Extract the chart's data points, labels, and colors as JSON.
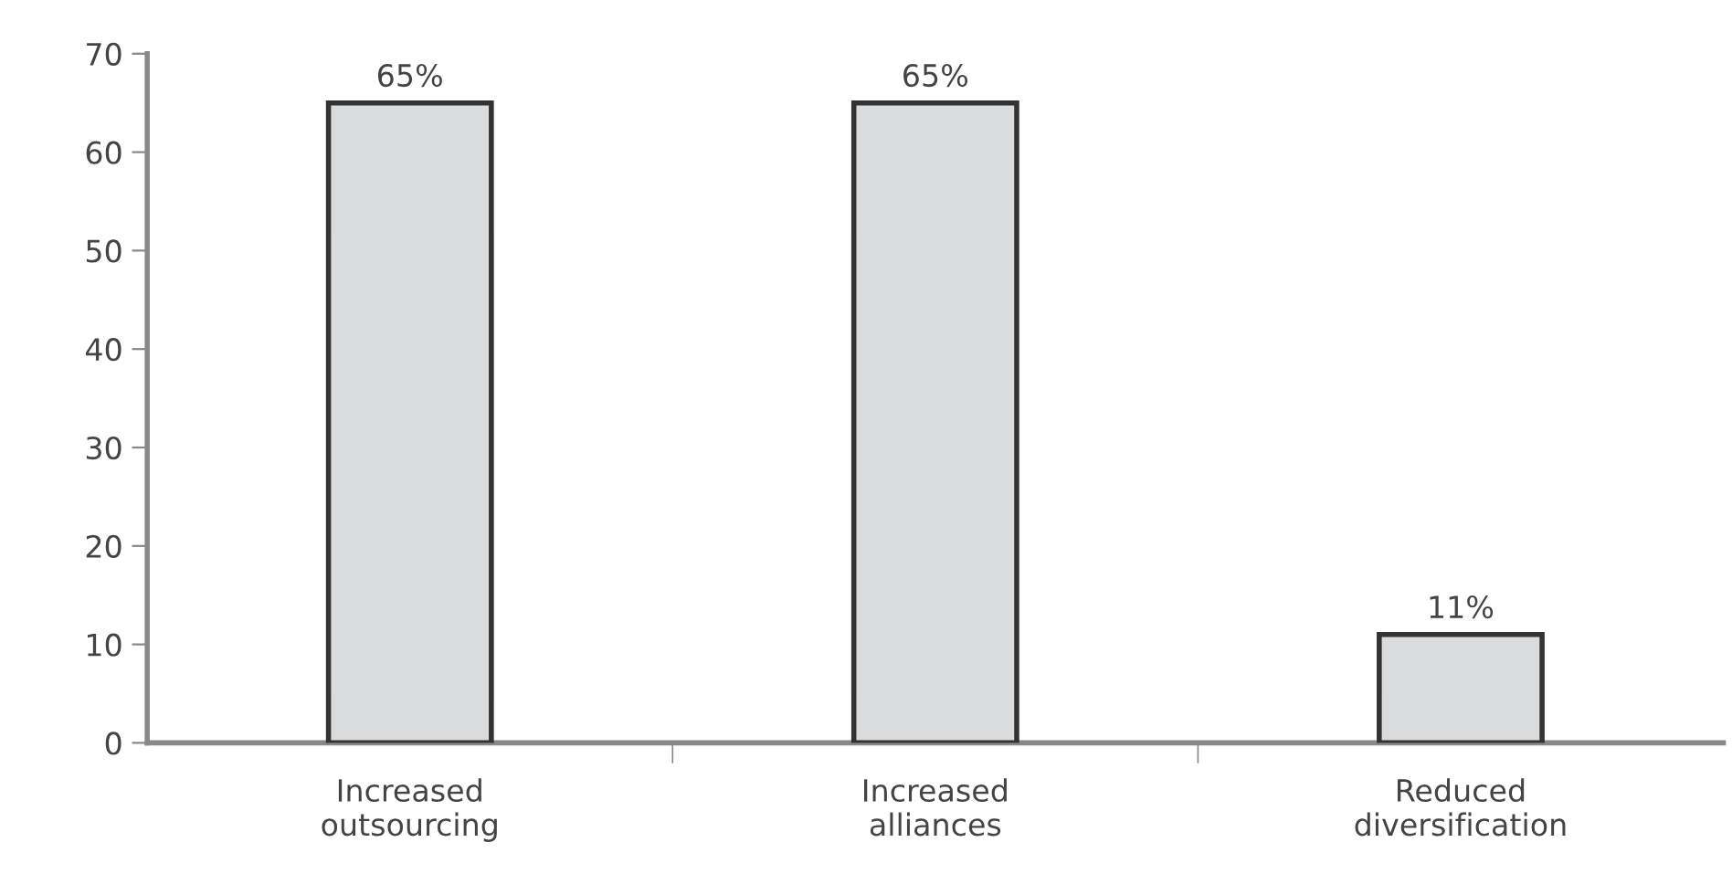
{
  "chart_data": {
    "type": "bar",
    "categories": [
      "Increased\noutsourcing",
      "Increased\nalliances",
      "Reduced\ndiversification"
    ],
    "values": [
      65,
      65,
      11
    ],
    "color": "#d9dbdd",
    "value_labels": [
      "65%",
      "65%",
      "11%"
    ],
    "ylim": [
      0,
      70
    ],
    "yticks": [
      0,
      10,
      20,
      30,
      40,
      50,
      60,
      70
    ],
    "grid": false,
    "legend": false
  }
}
